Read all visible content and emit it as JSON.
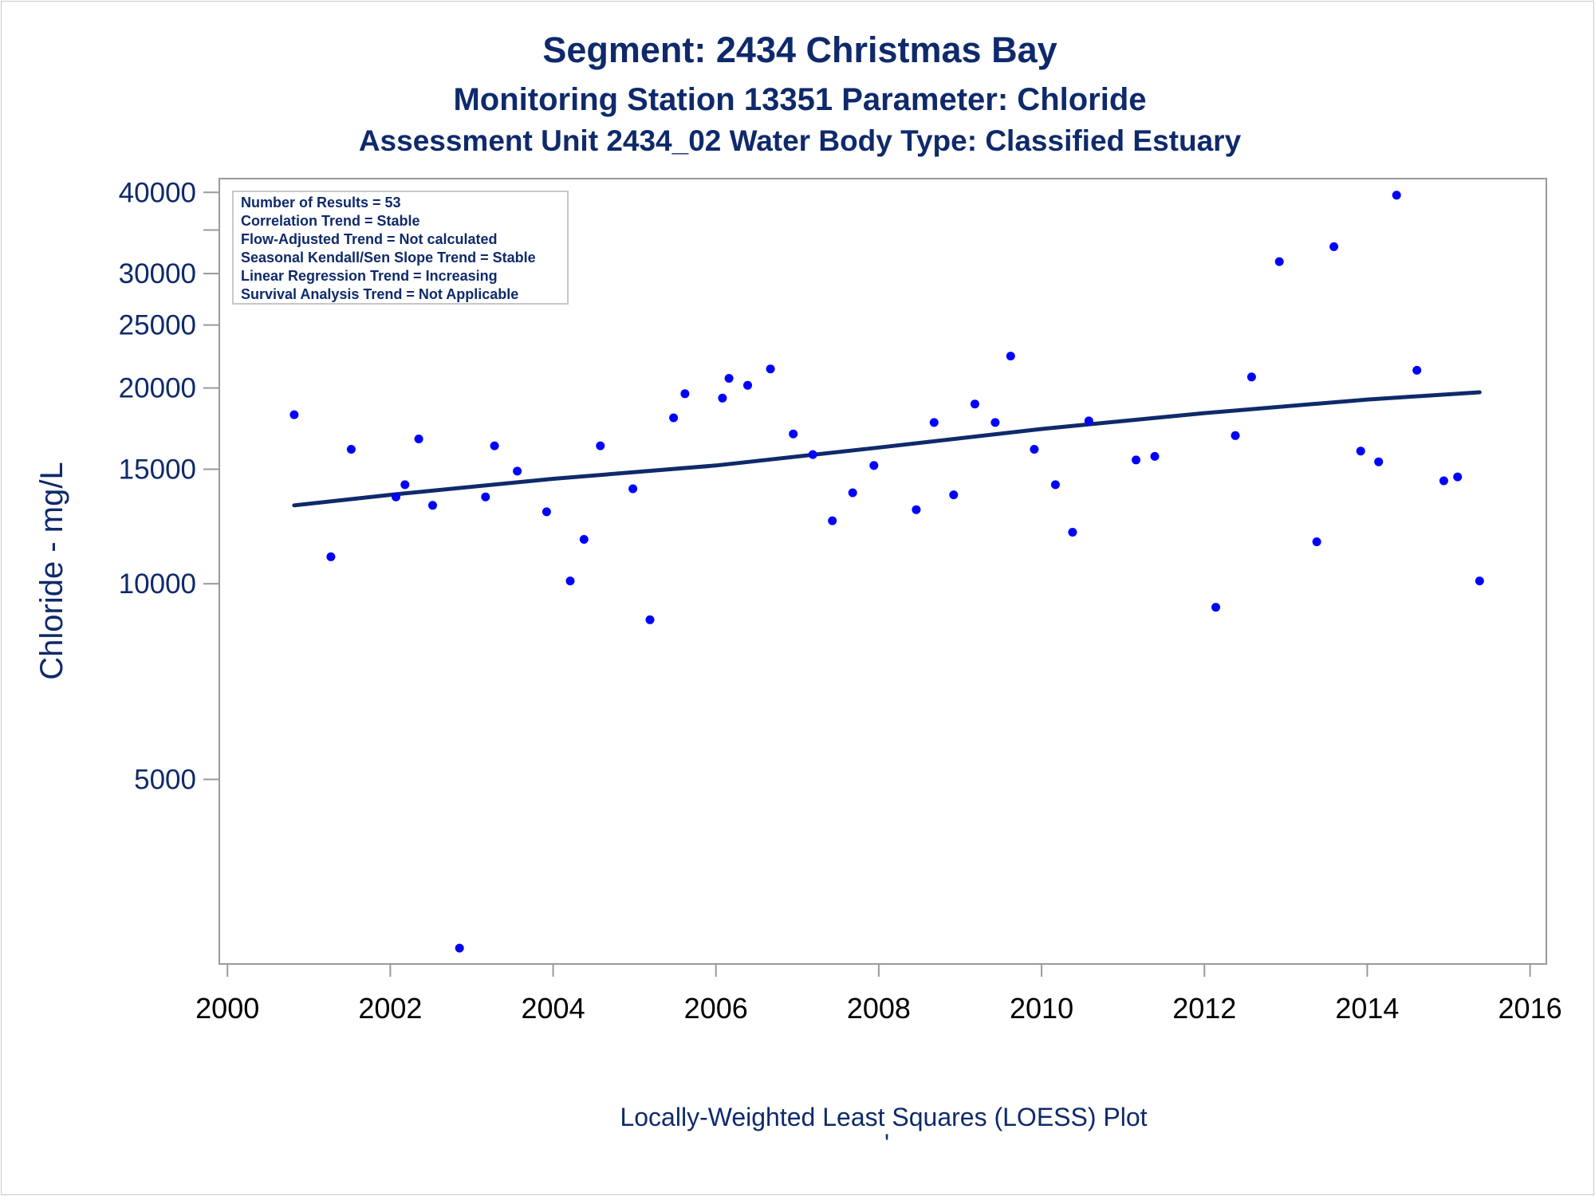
{
  "chart_data": {
    "type": "scatter",
    "title": "Segment: 2434  Christmas Bay",
    "subtitle": "Monitoring Station 13351 Parameter: Chloride",
    "subtitle2": "Assessment Unit 2434_02   Water Body Type: Classified Estuary",
    "xlabel": "",
    "ylabel": "Chloride - mg/L",
    "footnote": "Locally-Weighted Least Squares (LOESS) Plot",
    "footnote_mark": "'",
    "y_scale": "log",
    "xlim": [
      1999.9,
      2016.2
    ],
    "ylim": [
      2600,
      42000
    ],
    "x_ticks": [
      2000,
      2002,
      2004,
      2006,
      2008,
      2010,
      2012,
      2014,
      2016
    ],
    "y_ticks": [
      5000,
      10000,
      15000,
      20000,
      25000,
      30000,
      40000
    ],
    "y_minor_ticks": [
      35000
    ],
    "grid": false,
    "stats_box": [
      "Number of Results = 53",
      "Correlation Trend = Stable",
      "Flow-Adjusted Trend = Not calculated",
      "Seasonal Kendall/Sen Slope Trend = Stable",
      "Linear Regression Trend = Increasing",
      "Survival Analysis Trend = Not Applicable"
    ],
    "colors": {
      "points": "#0000ff",
      "trend_line": "#0f2a6b",
      "text": "#0f2a6b",
      "axis": "#9a9a9a"
    },
    "points": [
      {
        "x": 2000.82,
        "y": 18200
      },
      {
        "x": 2001.27,
        "y": 11000
      },
      {
        "x": 2001.52,
        "y": 16100
      },
      {
        "x": 2002.07,
        "y": 13600
      },
      {
        "x": 2002.18,
        "y": 14200
      },
      {
        "x": 2002.35,
        "y": 16700
      },
      {
        "x": 2002.52,
        "y": 13200
      },
      {
        "x": 2002.85,
        "y": 2750
      },
      {
        "x": 2003.17,
        "y": 13600
      },
      {
        "x": 2003.28,
        "y": 16300
      },
      {
        "x": 2003.56,
        "y": 14900
      },
      {
        "x": 2003.92,
        "y": 12900
      },
      {
        "x": 2004.21,
        "y": 10100
      },
      {
        "x": 2004.38,
        "y": 11700
      },
      {
        "x": 2004.58,
        "y": 16300
      },
      {
        "x": 2004.98,
        "y": 14000
      },
      {
        "x": 2005.19,
        "y": 8800
      },
      {
        "x": 2005.48,
        "y": 18000
      },
      {
        "x": 2005.62,
        "y": 19600
      },
      {
        "x": 2006.08,
        "y": 19300
      },
      {
        "x": 2006.16,
        "y": 20700
      },
      {
        "x": 2006.39,
        "y": 20200
      },
      {
        "x": 2006.67,
        "y": 21400
      },
      {
        "x": 2006.95,
        "y": 17000
      },
      {
        "x": 2007.19,
        "y": 15800
      },
      {
        "x": 2007.43,
        "y": 12500
      },
      {
        "x": 2007.68,
        "y": 13800
      },
      {
        "x": 2007.94,
        "y": 15200
      },
      {
        "x": 2008.46,
        "y": 13000
      },
      {
        "x": 2008.68,
        "y": 17700
      },
      {
        "x": 2008.92,
        "y": 13700
      },
      {
        "x": 2009.18,
        "y": 18900
      },
      {
        "x": 2009.43,
        "y": 17700
      },
      {
        "x": 2009.62,
        "y": 22400
      },
      {
        "x": 2009.91,
        "y": 16100
      },
      {
        "x": 2010.17,
        "y": 14200
      },
      {
        "x": 2010.38,
        "y": 12000
      },
      {
        "x": 2010.58,
        "y": 17800
      },
      {
        "x": 2011.16,
        "y": 15500
      },
      {
        "x": 2011.39,
        "y": 15700
      },
      {
        "x": 2012.14,
        "y": 9200
      },
      {
        "x": 2012.38,
        "y": 16900
      },
      {
        "x": 2012.58,
        "y": 20800
      },
      {
        "x": 2012.92,
        "y": 31300
      },
      {
        "x": 2013.38,
        "y": 11600
      },
      {
        "x": 2013.59,
        "y": 33000
      },
      {
        "x": 2013.92,
        "y": 16000
      },
      {
        "x": 2014.14,
        "y": 15400
      },
      {
        "x": 2014.36,
        "y": 39600
      },
      {
        "x": 2014.61,
        "y": 21300
      },
      {
        "x": 2014.94,
        "y": 14400
      },
      {
        "x": 2015.11,
        "y": 14600
      },
      {
        "x": 2015.38,
        "y": 10100
      }
    ],
    "trend_line": [
      {
        "x": 2000.82,
        "y": 13200
      },
      {
        "x": 2002.0,
        "y": 13700
      },
      {
        "x": 2004.0,
        "y": 14500
      },
      {
        "x": 2006.0,
        "y": 15200
      },
      {
        "x": 2008.0,
        "y": 16200
      },
      {
        "x": 2010.0,
        "y": 17300
      },
      {
        "x": 2012.0,
        "y": 18300
      },
      {
        "x": 2014.0,
        "y": 19200
      },
      {
        "x": 2015.38,
        "y": 19700
      }
    ]
  }
}
